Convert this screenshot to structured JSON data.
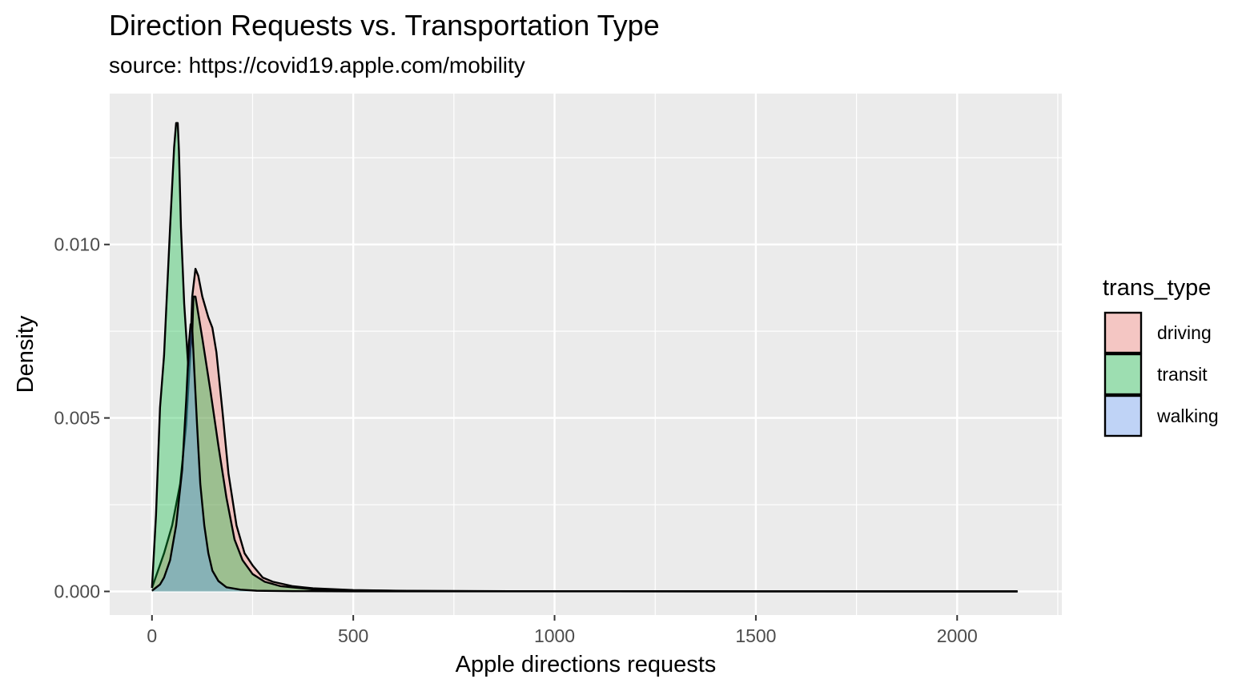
{
  "chart_data": {
    "type": "area",
    "title": "Direction Requests vs. Transportation Type",
    "subtitle": "source: https://covid19.apple.com/mobility",
    "xlabel": "Apple directions requests",
    "ylabel": "Density",
    "xlim": [
      -105,
      2260
    ],
    "ylim": [
      -0.00068,
      0.01435
    ],
    "x_ticks": [
      0,
      500,
      1000,
      1500,
      2000
    ],
    "x_tick_labels": [
      "0",
      "500",
      "1000",
      "1500",
      "2000"
    ],
    "y_ticks": [
      0.0,
      0.005,
      0.01
    ],
    "y_tick_labels": [
      "0.000",
      "0.005",
      "0.010"
    ],
    "grid": true,
    "legend": {
      "title": "trans_type",
      "position": "right"
    },
    "series": [
      {
        "name": "driving",
        "fill": "#F8766D",
        "points": [
          [
            0,
            0.0001
          ],
          [
            30,
            0.0011
          ],
          [
            50,
            0.0019
          ],
          [
            70,
            0.0031
          ],
          [
            85,
            0.0048
          ],
          [
            95,
            0.0068
          ],
          [
            100,
            0.0085
          ],
          [
            108,
            0.0093
          ],
          [
            115,
            0.0091
          ],
          [
            125,
            0.0085
          ],
          [
            140,
            0.0079
          ],
          [
            150,
            0.0076
          ],
          [
            160,
            0.0069
          ],
          [
            175,
            0.0052
          ],
          [
            190,
            0.0034
          ],
          [
            210,
            0.0019
          ],
          [
            230,
            0.0011
          ],
          [
            250,
            0.00075
          ],
          [
            275,
            0.0004
          ],
          [
            300,
            0.00028
          ],
          [
            350,
            0.00015
          ],
          [
            400,
            9e-05
          ],
          [
            500,
            4e-05
          ],
          [
            600,
            2e-05
          ],
          [
            800,
            1e-05
          ],
          [
            1000,
            5e-06
          ],
          [
            1500,
            2e-06
          ],
          [
            2150,
            1e-06
          ]
        ]
      },
      {
        "name": "transit",
        "fill": "#00BA38",
        "points": [
          [
            0,
            0.0001
          ],
          [
            10,
            0.0022
          ],
          [
            20,
            0.0053
          ],
          [
            30,
            0.0068
          ],
          [
            45,
            0.0105
          ],
          [
            55,
            0.0128
          ],
          [
            60,
            0.0135
          ],
          [
            64,
            0.0135
          ],
          [
            67,
            0.0127
          ],
          [
            72,
            0.0105
          ],
          [
            80,
            0.0083
          ],
          [
            90,
            0.0065
          ],
          [
            100,
            0.0074
          ],
          [
            103,
            0.0085
          ],
          [
            108,
            0.0085
          ],
          [
            125,
            0.0073
          ],
          [
            145,
            0.0058
          ],
          [
            165,
            0.0042
          ],
          [
            185,
            0.0027
          ],
          [
            205,
            0.0015
          ],
          [
            225,
            0.0009
          ],
          [
            250,
            0.0005
          ],
          [
            280,
            0.00028
          ],
          [
            320,
            0.00015
          ],
          [
            400,
            6e-05
          ],
          [
            500,
            3e-05
          ],
          [
            700,
            1e-05
          ],
          [
            1000,
            5e-06
          ],
          [
            1500,
            2e-06
          ],
          [
            2150,
            1e-06
          ]
        ]
      },
      {
        "name": "walking",
        "fill": "#619CFF",
        "points": [
          [
            0,
            2e-05
          ],
          [
            20,
            0.0002
          ],
          [
            30,
            0.0004
          ],
          [
            45,
            0.0009
          ],
          [
            60,
            0.0019
          ],
          [
            75,
            0.0035
          ],
          [
            85,
            0.0055
          ],
          [
            92,
            0.0072
          ],
          [
            96,
            0.0077
          ],
          [
            100,
            0.0076
          ],
          [
            105,
            0.0064
          ],
          [
            112,
            0.0048
          ],
          [
            120,
            0.0031
          ],
          [
            130,
            0.0019
          ],
          [
            140,
            0.0011
          ],
          [
            150,
            0.0006
          ],
          [
            165,
            0.0003
          ],
          [
            185,
            0.00012
          ],
          [
            220,
            5e-05
          ],
          [
            260,
            2e-05
          ],
          [
            350,
            8e-06
          ],
          [
            500,
            3e-06
          ],
          [
            1000,
            1e-06
          ],
          [
            2150,
            0.0
          ]
        ]
      }
    ]
  }
}
